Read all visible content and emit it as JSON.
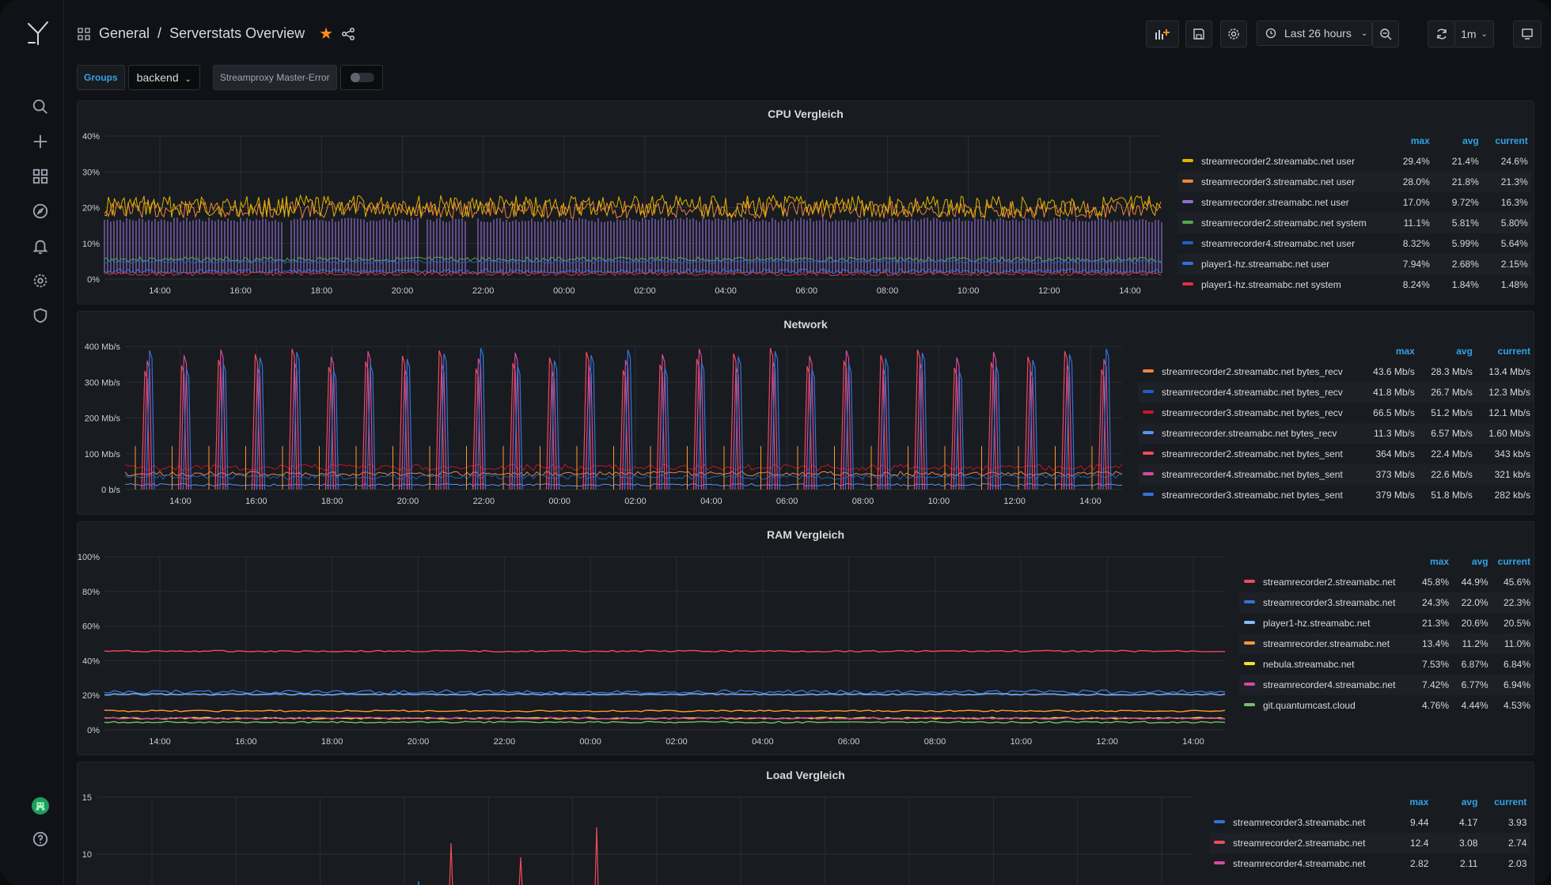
{
  "breadcrumb": {
    "folder": "General",
    "separator": "/",
    "dashboard": "Serverstats Overview"
  },
  "toolbar": {
    "time_range": "Last 26 hours",
    "refresh": "1m"
  },
  "variables": {
    "groups_label": "Groups",
    "groups_value": "backend",
    "toggle_label": "Streamproxy Master-Error"
  },
  "legend_headers": {
    "max": "max",
    "avg": "avg",
    "current": "current"
  },
  "panels": [
    {
      "title": "CPU Vergleich",
      "y_ticks": [
        "40%",
        "30%",
        "20%",
        "10%",
        "0%"
      ],
      "x_ticks": [
        "14:00",
        "16:00",
        "18:00",
        "20:00",
        "22:00",
        "00:00",
        "02:00",
        "04:00",
        "06:00",
        "08:00",
        "10:00",
        "12:00",
        "14:00"
      ],
      "legend": [
        {
          "name": "streamrecorder2.streamabc.net user",
          "max": "29.4%",
          "avg": "21.4%",
          "current": "24.6%",
          "color": "#e0b400"
        },
        {
          "name": "streamrecorder3.streamabc.net user",
          "max": "28.0%",
          "avg": "21.8%",
          "current": "21.3%",
          "color": "#ef843c"
        },
        {
          "name": "streamrecorder.streamabc.net user",
          "max": "17.0%",
          "avg": "9.72%",
          "current": "16.3%",
          "color": "#8f6fd1"
        },
        {
          "name": "streamrecorder2.streamabc.net system",
          "max": "11.1%",
          "avg": "5.81%",
          "current": "5.80%",
          "color": "#56a64b"
        },
        {
          "name": "streamrecorder4.streamabc.net user",
          "max": "8.32%",
          "avg": "5.99%",
          "current": "5.64%",
          "color": "#1f60c4"
        },
        {
          "name": "player1-hz.streamabc.net user",
          "max": "7.94%",
          "avg": "2.68%",
          "current": "2.15%",
          "color": "#3274d9"
        },
        {
          "name": "player1-hz.streamabc.net system",
          "max": "8.24%",
          "avg": "1.84%",
          "current": "1.48%",
          "color": "#e02f44"
        }
      ]
    },
    {
      "title": "Network",
      "y_ticks": [
        "400 Mb/s",
        "300 Mb/s",
        "200 Mb/s",
        "100 Mb/s",
        "0 b/s"
      ],
      "x_ticks": [
        "14:00",
        "16:00",
        "18:00",
        "20:00",
        "22:00",
        "00:00",
        "02:00",
        "04:00",
        "06:00",
        "08:00",
        "10:00",
        "12:00",
        "14:00"
      ],
      "legend": [
        {
          "name": "streamrecorder2.streamabc.net bytes_recv",
          "max": "43.6 Mb/s",
          "avg": "28.3 Mb/s",
          "current": "13.4 Mb/s",
          "color": "#ef843c"
        },
        {
          "name": "streamrecorder4.streamabc.net bytes_recv",
          "max": "41.8 Mb/s",
          "avg": "26.7 Mb/s",
          "current": "12.3 Mb/s",
          "color": "#1f60c4"
        },
        {
          "name": "streamrecorder3.streamabc.net bytes_recv",
          "max": "66.5 Mb/s",
          "avg": "51.2 Mb/s",
          "current": "12.1 Mb/s",
          "color": "#c4162a"
        },
        {
          "name": "streamrecorder.streamabc.net bytes_recv",
          "max": "11.3 Mb/s",
          "avg": "6.57 Mb/s",
          "current": "1.60 Mb/s",
          "color": "#5794f2"
        },
        {
          "name": "streamrecorder2.streamabc.net bytes_sent",
          "max": "364 Mb/s",
          "avg": "22.4 Mb/s",
          "current": "343 kb/s",
          "color": "#f2495c"
        },
        {
          "name": "streamrecorder4.streamabc.net bytes_sent",
          "max": "373 Mb/s",
          "avg": "22.6 Mb/s",
          "current": "321 kb/s",
          "color": "#d44a9e"
        },
        {
          "name": "streamrecorder3.streamabc.net bytes_sent",
          "max": "379 Mb/s",
          "avg": "51.8 Mb/s",
          "current": "282 kb/s",
          "color": "#3274d9"
        }
      ]
    },
    {
      "title": "RAM Vergleich",
      "y_ticks": [
        "100%",
        "80%",
        "60%",
        "40%",
        "20%",
        "0%"
      ],
      "x_ticks": [
        "14:00",
        "16:00",
        "18:00",
        "20:00",
        "22:00",
        "00:00",
        "02:00",
        "04:00",
        "06:00",
        "08:00",
        "10:00",
        "12:00",
        "14:00"
      ],
      "legend": [
        {
          "name": "streamrecorder2.streamabc.net",
          "max": "45.8%",
          "avg": "44.9%",
          "current": "45.6%",
          "color": "#f2495c"
        },
        {
          "name": "streamrecorder3.streamabc.net",
          "max": "24.3%",
          "avg": "22.0%",
          "current": "22.3%",
          "color": "#3274d9"
        },
        {
          "name": "player1-hz.streamabc.net",
          "max": "21.3%",
          "avg": "20.6%",
          "current": "20.5%",
          "color": "#8ab8ff"
        },
        {
          "name": "streamrecorder.streamabc.net",
          "max": "13.4%",
          "avg": "11.2%",
          "current": "11.0%",
          "color": "#ff9830"
        },
        {
          "name": "nebula.streamabc.net",
          "max": "7.53%",
          "avg": "6.87%",
          "current": "6.84%",
          "color": "#fade2a"
        },
        {
          "name": "streamrecorder4.streamabc.net",
          "max": "7.42%",
          "avg": "6.77%",
          "current": "6.94%",
          "color": "#d44a9e"
        },
        {
          "name": "git.quantumcast.cloud",
          "max": "4.76%",
          "avg": "4.44%",
          "current": "4.53%",
          "color": "#73bf69"
        }
      ]
    },
    {
      "title": "Load Vergleich",
      "y_ticks": [
        "15",
        "10"
      ],
      "x_ticks": [],
      "legend": [
        {
          "name": "streamrecorder3.streamabc.net",
          "max": "9.44",
          "avg": "4.17",
          "current": "3.93",
          "color": "#3274d9"
        },
        {
          "name": "streamrecorder2.streamabc.net",
          "max": "12.4",
          "avg": "3.08",
          "current": "2.74",
          "color": "#f2495c"
        },
        {
          "name": "streamrecorder4.streamabc.net",
          "max": "2.82",
          "avg": "2.11",
          "current": "2.03",
          "color": "#d44a9e"
        }
      ]
    }
  ]
}
